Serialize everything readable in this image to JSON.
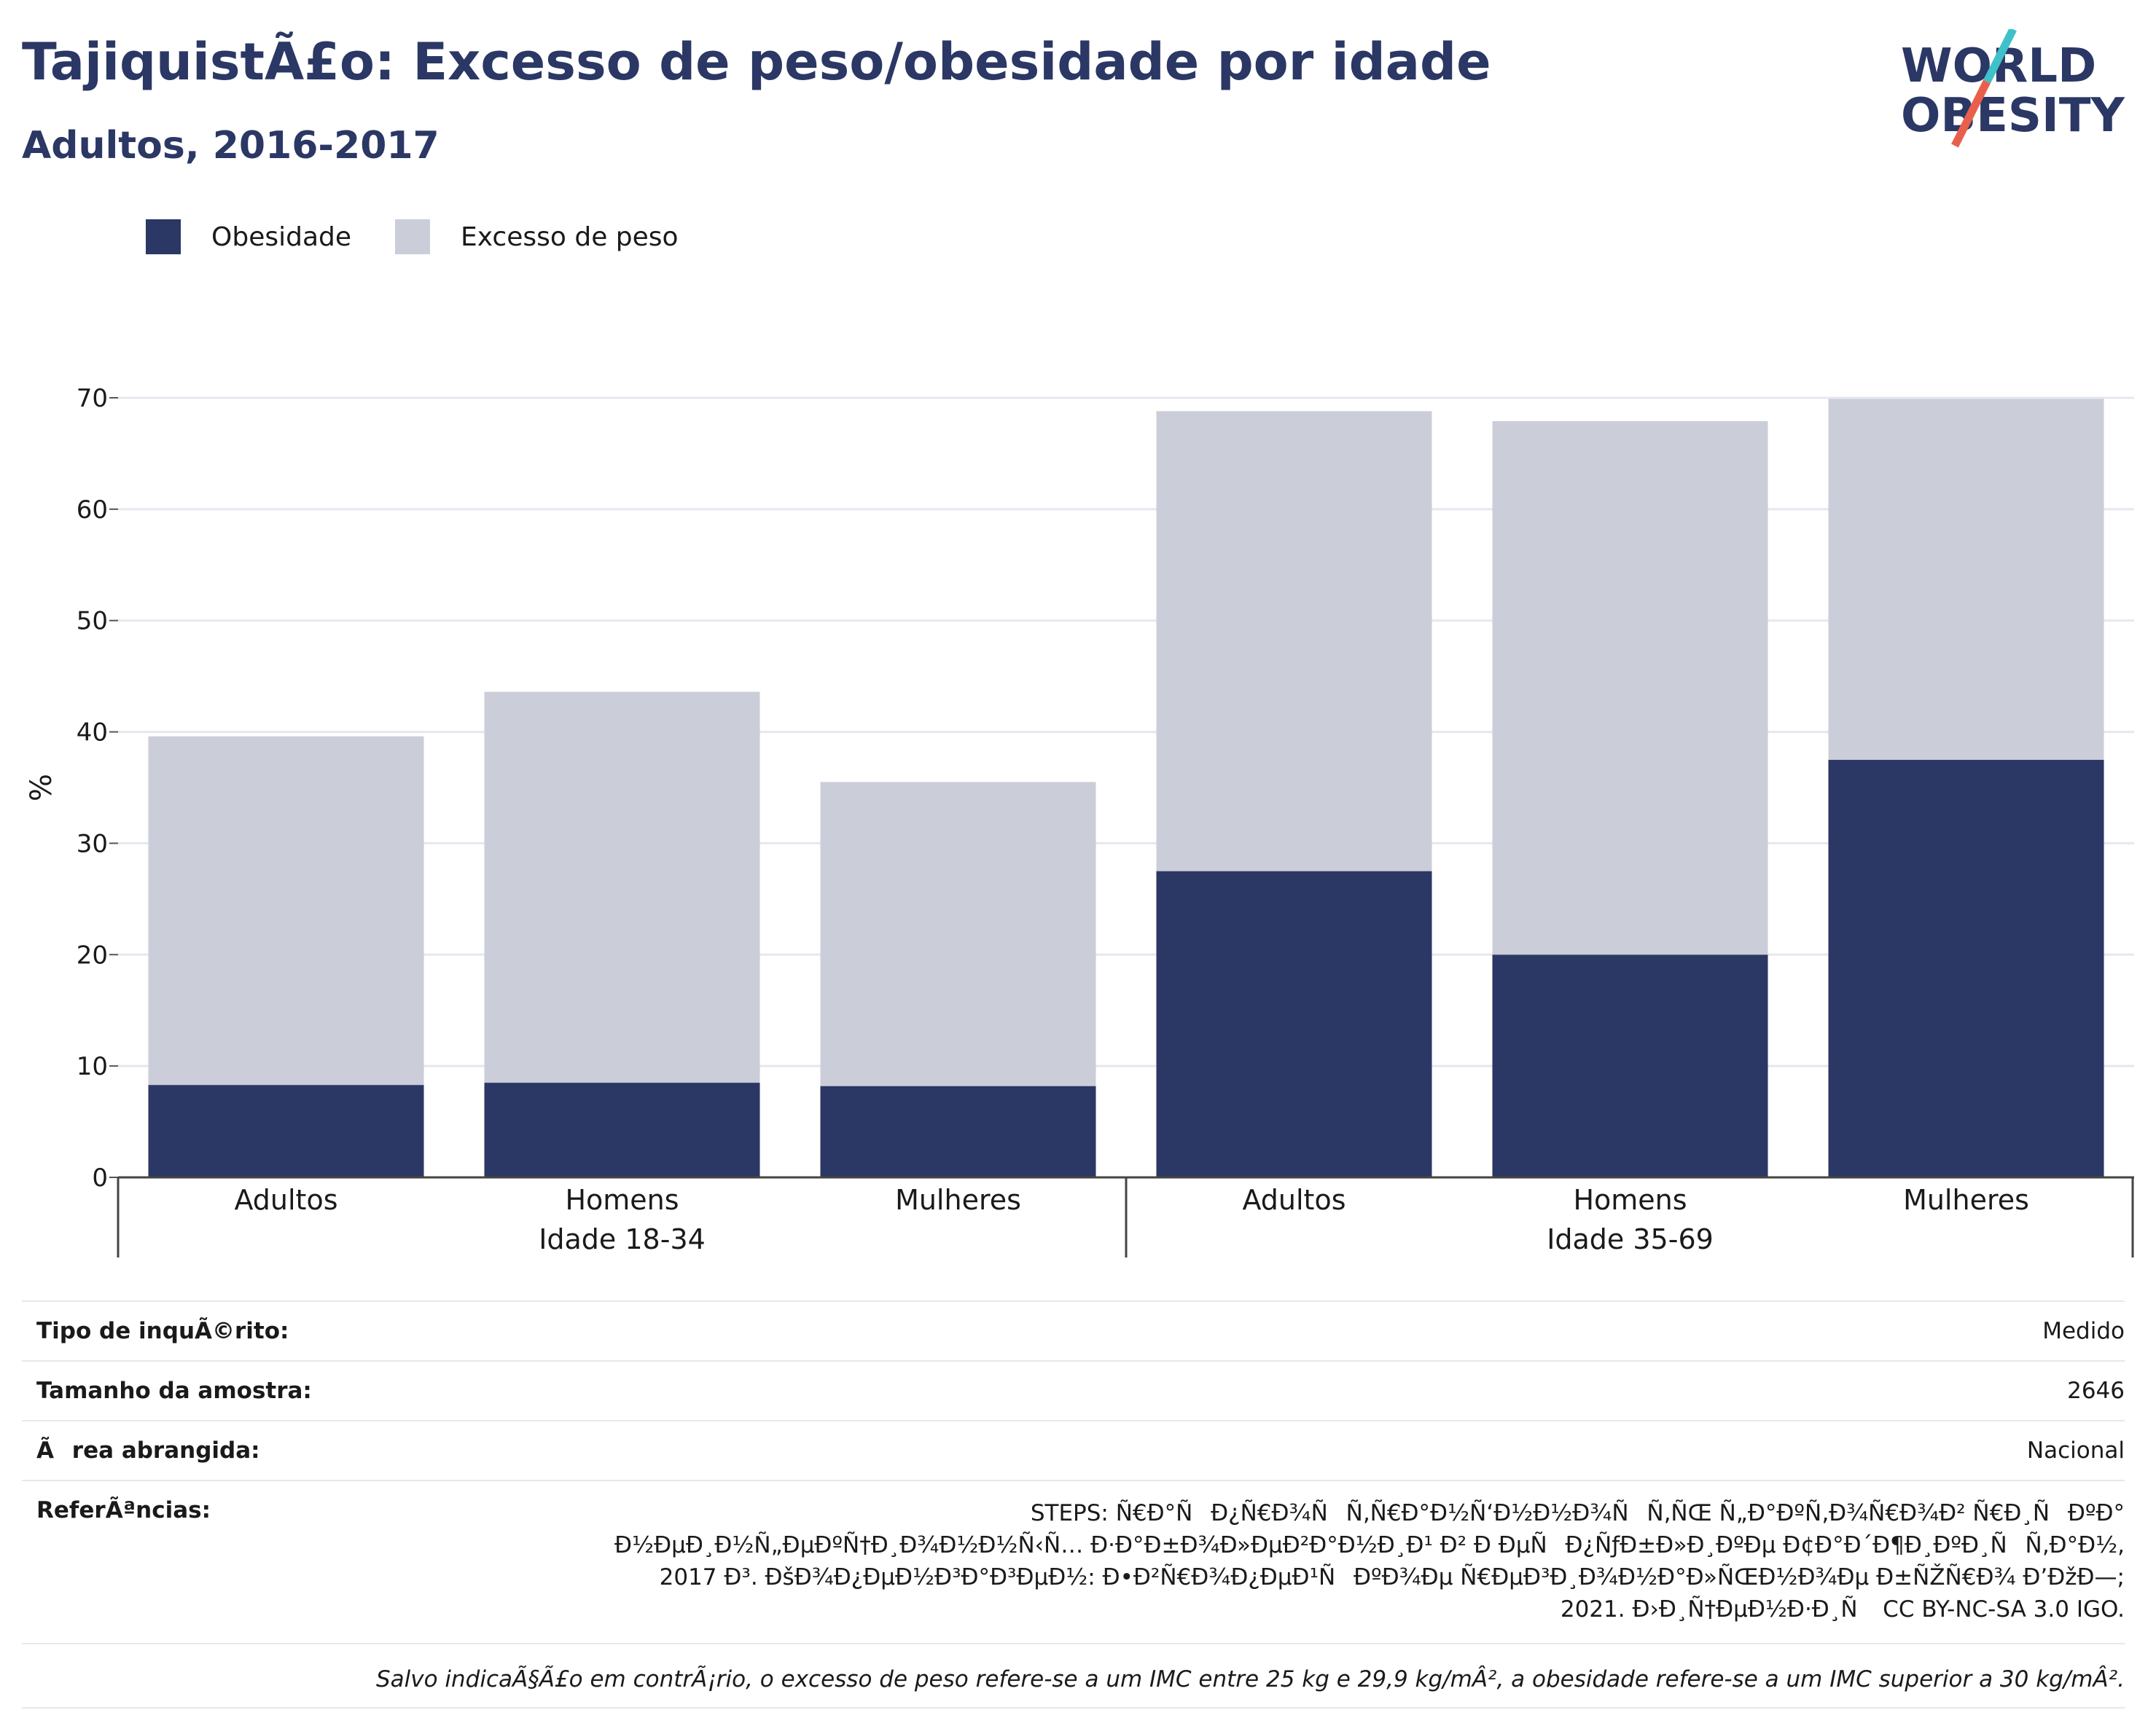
{
  "header": {
    "title": "TajiquistÃ£o: Excesso de peso/obesidade por idade",
    "subtitle": "Adultos, 2016-2017"
  },
  "logo": {
    "line1": "WORLD",
    "line2": "OBESITY",
    "text_color": "#2b3764",
    "slash_color_top": "#3ec1c9",
    "slash_color_bottom": "#e8604c"
  },
  "chart_data": {
    "type": "bar",
    "stacked": true,
    "categories": [
      "Adultos",
      "Homens",
      "Mulheres",
      "Adultos",
      "Homens",
      "Mulheres"
    ],
    "groups": [
      {
        "label": "Idade 18-34",
        "span": 3
      },
      {
        "label": "Idade 35-69",
        "span": 3
      }
    ],
    "series": [
      {
        "name": "Obesidade",
        "color": "#2b3764",
        "values": [
          8.3,
          8.5,
          8.2,
          27.5,
          20.0,
          37.5
        ]
      },
      {
        "name": "Excesso de peso",
        "color": "#cbcdd8",
        "values": [
          31.3,
          35.1,
          27.3,
          41.3,
          47.9,
          32.4
        ]
      }
    ],
    "ylabel": "%",
    "ylim": [
      0,
      70
    ],
    "yticks": [
      0,
      10,
      20,
      30,
      40,
      50,
      60,
      70
    ],
    "grid": true,
    "legend_position": "top-left"
  },
  "info": {
    "rows": [
      {
        "key": "Tipo de inquÃ©rito:",
        "value": "Medido"
      },
      {
        "key": "Tamanho da amostra:",
        "value": "2646"
      },
      {
        "key": "Ãrea abrangida:",
        "value": "Nacional"
      }
    ],
    "references_key": "ReferÃªncias:",
    "references_lines": [
      "STEPS: Ñ€Ð°ÑÐ¿Ñ€Ð¾ÑÑ‚Ñ€Ð°Ð½Ñ‘Ð½Ð½Ð¾ÑÑ‚ÑŒ Ñ„Ð°ÐºÑ‚Ð¾Ñ€Ð¾Ð² Ñ€Ð¸ÑÐºÐ°",
      "Ð½ÐµÐ¸Ð½Ñ„ÐµÐºÑ†Ð¸Ð¾Ð½Ð½Ñ‹Ñ… Ð·Ð°Ð±Ð¾Ð»ÐµÐ²Ð°Ð½Ð¸Ð¹ Ð² Ð ÐµÑÐ¿ÑƒÐ±Ð»Ð¸ÐºÐµ Ð¢Ð°Ð´Ð¶Ð¸ÐºÐ¸ÑÑ‚Ð°Ð½,",
      "2017 Ð³. ÐšÐ¾Ð¿ÐµÐ½Ð³Ð°Ð³ÐµÐ½: Ð•Ð²Ñ€Ð¾Ð¿ÐµÐ¹ÑÐºÐ¾Ðµ Ñ€ÐµÐ³Ð¸Ð¾Ð½Ð°Ð»ÑŒÐ½Ð¾Ðµ Ð±ÑŽÑ€Ð¾ Ð’ÐžÐ—;",
      "2021. Ð›Ð¸Ñ†ÐµÐ½Ð·Ð¸Ñ CC BY-NC-SA 3.0 IGO."
    ],
    "note": "Salvo indicaÃ§Ã£o em contrÃ¡rio, o excesso de peso refere-se a um IMC entre 25 kg e 29,9 kg/mÂ², a obesidade refere-se a um IMC superior a 30 kg/mÂ²."
  }
}
